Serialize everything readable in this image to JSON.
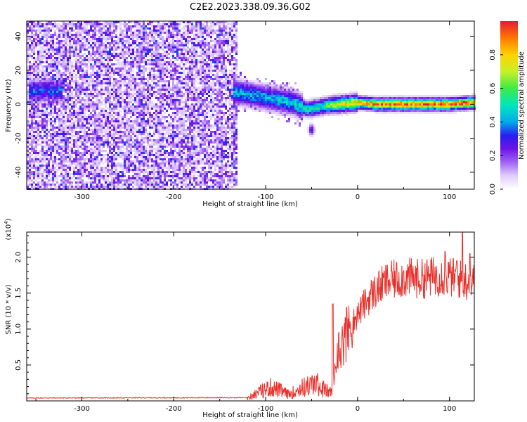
{
  "title": "C2E2.2023.338.09.36.G02",
  "colors": {
    "snr_line": "#e8302a",
    "frame": "#000000",
    "background": "#ffffff"
  },
  "chart_data": [
    {
      "type": "heatmap",
      "title": "C2E2.2023.338.09.36.G02",
      "xlabel": "Height of straight line (km)",
      "ylabel": "Frequency (Hz)",
      "xlim": [
        -360,
        127
      ],
      "ylim": [
        -50,
        49
      ],
      "x_ticks": [
        -300,
        -200,
        -100,
        0,
        100
      ],
      "x_tick_labels": [
        "-300",
        "-200",
        "-100",
        "0",
        "100"
      ],
      "y_ticks": [
        -40,
        -20,
        0,
        20,
        40
      ],
      "y_tick_labels": [
        "-40",
        "-20",
        "0",
        "20",
        "40"
      ],
      "colorbar": {
        "label": "Normalized spectral amplitude",
        "range": [
          0,
          1
        ],
        "colormap": "rainbow (white-violet-blue-cyan-green-yellow-orange-red)",
        "ticks": [
          0.0,
          0.2,
          0.4,
          0.6,
          0.8
        ],
        "tick_labels": [
          "0.0",
          "0.2",
          "0.4",
          "0.6",
          "0.8"
        ]
      },
      "features": {
        "noise_region_x": [
          -360,
          -130
        ],
        "noise_amplitude": 0.15,
        "low_height_band": {
          "x": [
            -358,
            -320
          ],
          "freq_center": 8,
          "freq_width": 6,
          "amplitude": 0.35
        },
        "trace": [
          {
            "x": -130,
            "freq": 7
          },
          {
            "x": -110,
            "freq": 5
          },
          {
            "x": -90,
            "freq": 3
          },
          {
            "x": -70,
            "freq": 1
          },
          {
            "x": -55,
            "freq": -3
          },
          {
            "x": -45,
            "freq": -2
          },
          {
            "x": -35,
            "freq": -1
          },
          {
            "x": -20,
            "freq": 0
          },
          {
            "x": 0,
            "freq": 1
          },
          {
            "x": 20,
            "freq": 0
          },
          {
            "x": 60,
            "freq": 0
          },
          {
            "x": 100,
            "freq": 0
          },
          {
            "x": 127,
            "freq": 1
          }
        ],
        "trace_amplitude": [
          {
            "x": -130,
            "value": 0.45
          },
          {
            "x": -100,
            "value": 0.45
          },
          {
            "x": -70,
            "value": 0.5
          },
          {
            "x": -40,
            "value": 0.55
          },
          {
            "x": -20,
            "value": 0.75
          },
          {
            "x": 0,
            "value": 0.8
          },
          {
            "x": 20,
            "value": 0.95
          },
          {
            "x": 127,
            "value": 0.95
          }
        ],
        "secondary_blob": {
          "x": -50,
          "freq": -15,
          "amplitude": 0.2
        }
      }
    },
    {
      "type": "line",
      "xlabel": "Height of straight line (km)",
      "ylabel": "SNR (10 * v/v)",
      "multiplier_label": "(x10",
      "multiplier_exponent": "4",
      "multiplier_close": ")",
      "xlim": [
        -360,
        127
      ],
      "ylim": [
        0,
        23500
      ],
      "x_ticks": [
        -300,
        -200,
        -100,
        0,
        100
      ],
      "x_tick_labels": [
        "-300",
        "-200",
        "-100",
        "0",
        "100"
      ],
      "y_ticks": [
        5000,
        10000,
        15000,
        20000
      ],
      "y_tick_labels": [
        "0.5",
        "1.0",
        "1.5",
        "2.0"
      ],
      "series": [
        {
          "color": "#e8302a",
          "envelope": [
            {
              "x": -360,
              "y": 400
            },
            {
              "x": -120,
              "y": 450
            },
            {
              "x": -110,
              "y": 1500
            },
            {
              "x": -95,
              "y": 2500
            },
            {
              "x": -85,
              "y": 2000
            },
            {
              "x": -75,
              "y": 1200
            },
            {
              "x": -60,
              "y": 2500
            },
            {
              "x": -45,
              "y": 3200
            },
            {
              "x": -35,
              "y": 2000
            },
            {
              "x": -28,
              "y": 1500
            },
            {
              "x": -22,
              "y": 7000
            },
            {
              "x": -15,
              "y": 9000
            },
            {
              "x": -5,
              "y": 11000
            },
            {
              "x": 5,
              "y": 13000
            },
            {
              "x": 15,
              "y": 14800
            },
            {
              "x": 30,
              "y": 16500
            },
            {
              "x": 50,
              "y": 17200
            },
            {
              "x": 70,
              "y": 17000
            },
            {
              "x": 90,
              "y": 17500
            },
            {
              "x": 110,
              "y": 17000
            },
            {
              "x": 127,
              "y": 16500
            }
          ],
          "noise_fraction": 0.12,
          "spikes": [
            {
              "x": -27,
              "y": 13500
            },
            {
              "x": -12,
              "y": 13000
            },
            {
              "x": 95,
              "y": 20800
            },
            {
              "x": 108,
              "y": 19500
            },
            {
              "x": 114,
              "y": 23500
            },
            {
              "x": 122,
              "y": 20500
            }
          ]
        }
      ]
    }
  ]
}
